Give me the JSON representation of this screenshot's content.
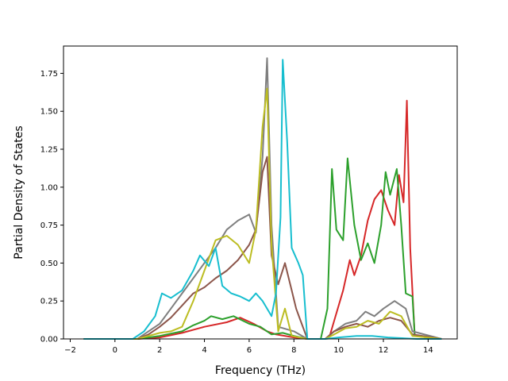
{
  "chart_data": {
    "type": "line",
    "title": "",
    "xlabel": "Frequency (THz)",
    "ylabel": "Partial Density of States",
    "xlim": [
      -2.3,
      15.3
    ],
    "ylim": [
      0.0,
      1.93
    ],
    "xticks": [
      -2,
      0,
      2,
      4,
      6,
      8,
      10,
      12,
      14
    ],
    "xtick_labels": [
      "−2",
      "0",
      "2",
      "4",
      "6",
      "8",
      "10",
      "12",
      "14"
    ],
    "yticks": [
      0.0,
      0.25,
      0.5,
      0.75,
      1.0,
      1.25,
      1.5,
      1.75
    ],
    "ytick_labels": [
      "0.00",
      "0.25",
      "0.50",
      "0.75",
      "1.00",
      "1.25",
      "1.50",
      "1.75"
    ],
    "grid": false,
    "legend": "none",
    "series": [
      {
        "color": "#d62728",
        "points": [
          [
            -1.4,
            0
          ],
          [
            1.0,
            0
          ],
          [
            2.0,
            0.01
          ],
          [
            3.0,
            0.04
          ],
          [
            4.0,
            0.08
          ],
          [
            5.0,
            0.11
          ],
          [
            5.6,
            0.14
          ],
          [
            6.2,
            0.1
          ],
          [
            6.8,
            0.05
          ],
          [
            7.2,
            0.03
          ],
          [
            8.0,
            0.01
          ],
          [
            8.6,
            0
          ],
          [
            9.4,
            0
          ],
          [
            9.6,
            0.02
          ],
          [
            9.8,
            0.12
          ],
          [
            10.2,
            0.32
          ],
          [
            10.5,
            0.52
          ],
          [
            10.7,
            0.42
          ],
          [
            11.0,
            0.55
          ],
          [
            11.3,
            0.78
          ],
          [
            11.6,
            0.92
          ],
          [
            11.9,
            0.98
          ],
          [
            12.2,
            0.85
          ],
          [
            12.5,
            0.75
          ],
          [
            12.7,
            1.08
          ],
          [
            12.9,
            0.9
          ],
          [
            13.05,
            1.57
          ],
          [
            13.2,
            0.6
          ],
          [
            13.4,
            0.02
          ],
          [
            14.6,
            0
          ]
        ]
      },
      {
        "color": "#2ca02c",
        "points": [
          [
            -1.4,
            0
          ],
          [
            1.0,
            0
          ],
          [
            2.0,
            0.02
          ],
          [
            3.0,
            0.05
          ],
          [
            3.5,
            0.09
          ],
          [
            4.0,
            0.12
          ],
          [
            4.3,
            0.15
          ],
          [
            4.8,
            0.13
          ],
          [
            5.3,
            0.15
          ],
          [
            6.0,
            0.1
          ],
          [
            6.5,
            0.08
          ],
          [
            7.0,
            0.03
          ],
          [
            7.5,
            0.04
          ],
          [
            8.0,
            0.02
          ],
          [
            8.6,
            0
          ],
          [
            9.2,
            0
          ],
          [
            9.5,
            0.2
          ],
          [
            9.7,
            1.12
          ],
          [
            9.9,
            0.72
          ],
          [
            10.2,
            0.65
          ],
          [
            10.4,
            1.19
          ],
          [
            10.7,
            0.75
          ],
          [
            11.0,
            0.52
          ],
          [
            11.3,
            0.63
          ],
          [
            11.6,
            0.5
          ],
          [
            11.9,
            0.75
          ],
          [
            12.1,
            1.1
          ],
          [
            12.3,
            0.95
          ],
          [
            12.6,
            1.12
          ],
          [
            12.8,
            0.75
          ],
          [
            13.0,
            0.3
          ],
          [
            13.3,
            0.28
          ],
          [
            13.4,
            0.02
          ],
          [
            14.6,
            0
          ]
        ]
      },
      {
        "color": "#7f7f7f",
        "points": [
          [
            -1.4,
            0
          ],
          [
            1.0,
            0
          ],
          [
            1.5,
            0.05
          ],
          [
            2.0,
            0.1
          ],
          [
            2.5,
            0.2
          ],
          [
            3.0,
            0.3
          ],
          [
            3.5,
            0.4
          ],
          [
            4.0,
            0.5
          ],
          [
            4.5,
            0.6
          ],
          [
            5.0,
            0.72
          ],
          [
            5.5,
            0.78
          ],
          [
            6.0,
            0.82
          ],
          [
            6.3,
            0.7
          ],
          [
            6.6,
            1.2
          ],
          [
            6.8,
            1.85
          ],
          [
            7.0,
            0.75
          ],
          [
            7.3,
            0.08
          ],
          [
            8.0,
            0.05
          ],
          [
            8.6,
            0
          ],
          [
            9.4,
            0
          ],
          [
            9.8,
            0.05
          ],
          [
            10.3,
            0.1
          ],
          [
            10.8,
            0.12
          ],
          [
            11.2,
            0.18
          ],
          [
            11.6,
            0.15
          ],
          [
            12.0,
            0.2
          ],
          [
            12.5,
            0.25
          ],
          [
            13.0,
            0.2
          ],
          [
            13.3,
            0.05
          ],
          [
            14.6,
            0
          ]
        ]
      },
      {
        "color": "#8c564b",
        "points": [
          [
            -1.4,
            0
          ],
          [
            1.0,
            0
          ],
          [
            1.5,
            0.03
          ],
          [
            2.0,
            0.08
          ],
          [
            2.5,
            0.14
          ],
          [
            3.0,
            0.22
          ],
          [
            3.5,
            0.3
          ],
          [
            4.0,
            0.34
          ],
          [
            4.5,
            0.4
          ],
          [
            5.0,
            0.45
          ],
          [
            5.5,
            0.52
          ],
          [
            6.0,
            0.62
          ],
          [
            6.3,
            0.72
          ],
          [
            6.6,
            1.1
          ],
          [
            6.8,
            1.2
          ],
          [
            7.0,
            0.55
          ],
          [
            7.3,
            0.36
          ],
          [
            7.6,
            0.5
          ],
          [
            7.9,
            0.32
          ],
          [
            8.1,
            0.2
          ],
          [
            8.3,
            0.12
          ],
          [
            8.6,
            0
          ],
          [
            9.4,
            0
          ],
          [
            9.8,
            0.05
          ],
          [
            10.3,
            0.08
          ],
          [
            10.8,
            0.1
          ],
          [
            11.3,
            0.08
          ],
          [
            11.8,
            0.12
          ],
          [
            12.3,
            0.14
          ],
          [
            12.8,
            0.12
          ],
          [
            13.3,
            0.03
          ],
          [
            14.6,
            0
          ]
        ]
      },
      {
        "color": "#bcbd22",
        "points": [
          [
            -1.4,
            0
          ],
          [
            1.0,
            0
          ],
          [
            1.5,
            0.02
          ],
          [
            2.0,
            0.04
          ],
          [
            2.5,
            0.05
          ],
          [
            3.0,
            0.08
          ],
          [
            3.5,
            0.25
          ],
          [
            4.0,
            0.45
          ],
          [
            4.5,
            0.65
          ],
          [
            5.0,
            0.68
          ],
          [
            5.5,
            0.62
          ],
          [
            6.0,
            0.5
          ],
          [
            6.3,
            0.72
          ],
          [
            6.6,
            1.4
          ],
          [
            6.8,
            1.65
          ],
          [
            7.0,
            0.62
          ],
          [
            7.3,
            0.05
          ],
          [
            7.6,
            0.2
          ],
          [
            7.9,
            0.02
          ],
          [
            8.6,
            0
          ],
          [
            9.4,
            0
          ],
          [
            9.8,
            0.03
          ],
          [
            10.3,
            0.07
          ],
          [
            10.8,
            0.08
          ],
          [
            11.3,
            0.12
          ],
          [
            11.8,
            0.1
          ],
          [
            12.3,
            0.18
          ],
          [
            12.8,
            0.15
          ],
          [
            13.3,
            0.02
          ],
          [
            14.6,
            0
          ]
        ]
      },
      {
        "color": "#17becf",
        "points": [
          [
            -1.4,
            0
          ],
          [
            0.8,
            0
          ],
          [
            1.3,
            0.05
          ],
          [
            1.8,
            0.15
          ],
          [
            2.1,
            0.3
          ],
          [
            2.5,
            0.27
          ],
          [
            3.0,
            0.32
          ],
          [
            3.5,
            0.45
          ],
          [
            3.8,
            0.55
          ],
          [
            4.2,
            0.48
          ],
          [
            4.5,
            0.6
          ],
          [
            4.8,
            0.35
          ],
          [
            5.2,
            0.3
          ],
          [
            5.6,
            0.28
          ],
          [
            6.0,
            0.25
          ],
          [
            6.3,
            0.3
          ],
          [
            6.6,
            0.25
          ],
          [
            7.0,
            0.15
          ],
          [
            7.2,
            0.3
          ],
          [
            7.4,
            0.8
          ],
          [
            7.5,
            1.84
          ],
          [
            7.7,
            1.3
          ],
          [
            7.9,
            0.6
          ],
          [
            8.2,
            0.5
          ],
          [
            8.4,
            0.42
          ],
          [
            8.6,
            0
          ],
          [
            9.4,
            0
          ],
          [
            10.0,
            0.01
          ],
          [
            10.8,
            0.02
          ],
          [
            11.5,
            0.02
          ],
          [
            12.2,
            0.01
          ],
          [
            13.5,
            0
          ],
          [
            14.6,
            0
          ]
        ]
      }
    ]
  }
}
